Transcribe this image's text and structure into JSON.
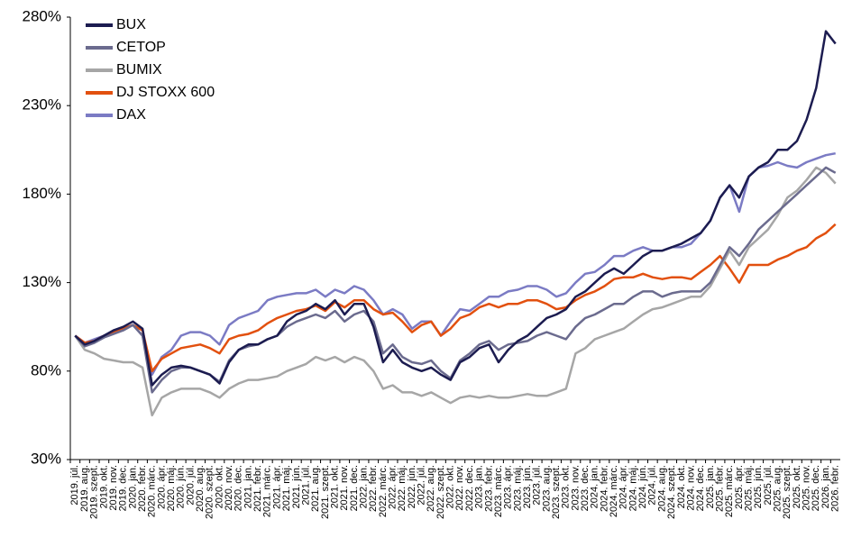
{
  "chart_data": {
    "type": "line",
    "categories": [
      "2019. júl.",
      "2019. aug.",
      "2019. szept.",
      "2019. okt.",
      "2019. nov.",
      "2019. dec.",
      "2020. jan.",
      "2020. febr.",
      "2020. márc.",
      "2020. ápr.",
      "2020. máj.",
      "2020. jún.",
      "2020. júl.",
      "2020. aug.",
      "2020. szept.",
      "2020. okt.",
      "2020. nov.",
      "2020. dec.",
      "2021. jan.",
      "2021. febr.",
      "2021. márc.",
      "2021. ápr.",
      "2021. máj.",
      "2021. jún.",
      "2021. júl.",
      "2021. aug.",
      "2021. szept.",
      "2021. okt.",
      "2021. nov.",
      "2021. dec.",
      "2022. jan.",
      "2022. febr.",
      "2022. márc.",
      "2022. ápr.",
      "2022. máj.",
      "2022. jún.",
      "2022. júl.",
      "2022. aug.",
      "2022. szept.",
      "2022. okt.",
      "2022. nov.",
      "2022. dec.",
      "2023. jan.",
      "2023. febr.",
      "2023. márc.",
      "2023. ápr.",
      "2023. máj.",
      "2023. jún.",
      "2023. júl.",
      "2023. aug.",
      "2023. szept.",
      "2023. okt.",
      "2023. nov.",
      "2023. dec.",
      "2024. jan.",
      "2024. febr.",
      "2024. márc.",
      "2024. ápr.",
      "2024. máj.",
      "2024. jún.",
      "2024. júl.",
      "2024. aug.",
      "2024. szept.",
      "2024. okt.",
      "2024. nov.",
      "2024. dec.",
      "2025. jan.",
      "2025. febr.",
      "2025. márc.",
      "2025. ápr.",
      "2025. máj.",
      "2025. jún.",
      "2025. júl.",
      "2025. aug.",
      "2025. szept.",
      "2025. okt.",
      "2025. nov.",
      "2025. dec.",
      "2026. jan.",
      "2026. febr."
    ],
    "series": [
      {
        "name": "BUX",
        "color": "#1c1c50",
        "values": [
          100,
          95,
          97,
          100,
          103,
          105,
          108,
          104,
          72,
          78,
          82,
          83,
          82,
          80,
          78,
          73,
          85,
          92,
          95,
          95,
          98,
          100,
          108,
          112,
          114,
          118,
          115,
          120,
          112,
          118,
          118,
          105,
          85,
          92,
          85,
          82,
          80,
          82,
          78,
          75,
          85,
          88,
          93,
          95,
          85,
          92,
          97,
          100,
          105,
          110,
          112,
          115,
          122,
          125,
          130,
          135,
          138,
          135,
          140,
          145,
          148,
          148,
          150,
          152,
          155,
          158,
          165,
          178,
          185,
          178,
          190,
          195,
          198,
          205,
          205,
          210,
          222,
          240,
          272,
          265
        ]
      },
      {
        "name": "CETOP",
        "color": "#6b6b8e",
        "values": [
          100,
          94,
          96,
          99,
          101,
          103,
          106,
          100,
          68,
          75,
          80,
          82,
          82,
          80,
          78,
          74,
          86,
          92,
          94,
          95,
          98,
          100,
          105,
          108,
          110,
          112,
          110,
          114,
          108,
          112,
          114,
          108,
          90,
          95,
          88,
          85,
          84,
          86,
          80,
          76,
          86,
          90,
          95,
          97,
          92,
          95,
          96,
          97,
          100,
          102,
          100,
          98,
          105,
          110,
          112,
          115,
          118,
          118,
          122,
          125,
          125,
          122,
          124,
          125,
          125,
          125,
          130,
          140,
          150,
          145,
          152,
          160,
          165,
          170,
          175,
          180,
          185,
          190,
          195,
          192
        ]
      },
      {
        "name": "BUMIX",
        "color": "#a6a6a6",
        "values": [
          100,
          92,
          90,
          87,
          86,
          85,
          85,
          82,
          55,
          65,
          68,
          70,
          70,
          70,
          68,
          65,
          70,
          73,
          75,
          75,
          76,
          77,
          80,
          82,
          84,
          88,
          86,
          88,
          85,
          88,
          86,
          80,
          70,
          72,
          68,
          68,
          66,
          68,
          65,
          62,
          65,
          66,
          65,
          66,
          65,
          65,
          66,
          67,
          66,
          66,
          68,
          70,
          90,
          93,
          98,
          100,
          102,
          104,
          108,
          112,
          115,
          116,
          118,
          120,
          122,
          122,
          128,
          138,
          148,
          140,
          150,
          155,
          160,
          168,
          178,
          182,
          188,
          195,
          192,
          186
        ]
      },
      {
        "name": "DJ STOXX 600",
        "color": "#e2500f",
        "values": [
          100,
          96,
          97,
          100,
          102,
          104,
          106,
          103,
          80,
          87,
          90,
          93,
          94,
          95,
          93,
          90,
          98,
          100,
          101,
          103,
          107,
          110,
          112,
          114,
          115,
          117,
          114,
          119,
          116,
          120,
          120,
          115,
          112,
          113,
          108,
          102,
          106,
          108,
          100,
          104,
          110,
          112,
          116,
          118,
          116,
          118,
          118,
          120,
          120,
          118,
          115,
          116,
          120,
          123,
          125,
          128,
          132,
          133,
          133,
          135,
          133,
          132,
          133,
          133,
          132,
          136,
          140,
          145,
          138,
          130,
          140,
          140,
          140,
          143,
          145,
          148,
          150,
          155,
          158,
          163
        ]
      },
      {
        "name": "DAX",
        "color": "#7b7bc4",
        "values": [
          100,
          96,
          98,
          100,
          103,
          104,
          106,
          100,
          78,
          88,
          92,
          100,
          102,
          102,
          100,
          95,
          106,
          110,
          112,
          114,
          120,
          122,
          123,
          124,
          124,
          126,
          122,
          126,
          124,
          128,
          126,
          120,
          112,
          115,
          112,
          104,
          108,
          108,
          100,
          108,
          115,
          114,
          118,
          122,
          122,
          125,
          126,
          128,
          128,
          126,
          122,
          124,
          130,
          135,
          136,
          140,
          145,
          145,
          148,
          150,
          148,
          148,
          150,
          150,
          152,
          158,
          165,
          178,
          185,
          170,
          190,
          195,
          196,
          198,
          196,
          195,
          198,
          200,
          202,
          203
        ]
      }
    ],
    "ylim": [
      30,
      280
    ],
    "yticks": [
      {
        "value": 30,
        "label": "30%"
      },
      {
        "value": 80,
        "label": "80%"
      },
      {
        "value": 130,
        "label": "130%"
      },
      {
        "value": 180,
        "label": "180%"
      },
      {
        "value": 230,
        "label": "230%"
      },
      {
        "value": 280,
        "label": "280%"
      }
    ],
    "grid": false,
    "legend": "top-left"
  }
}
